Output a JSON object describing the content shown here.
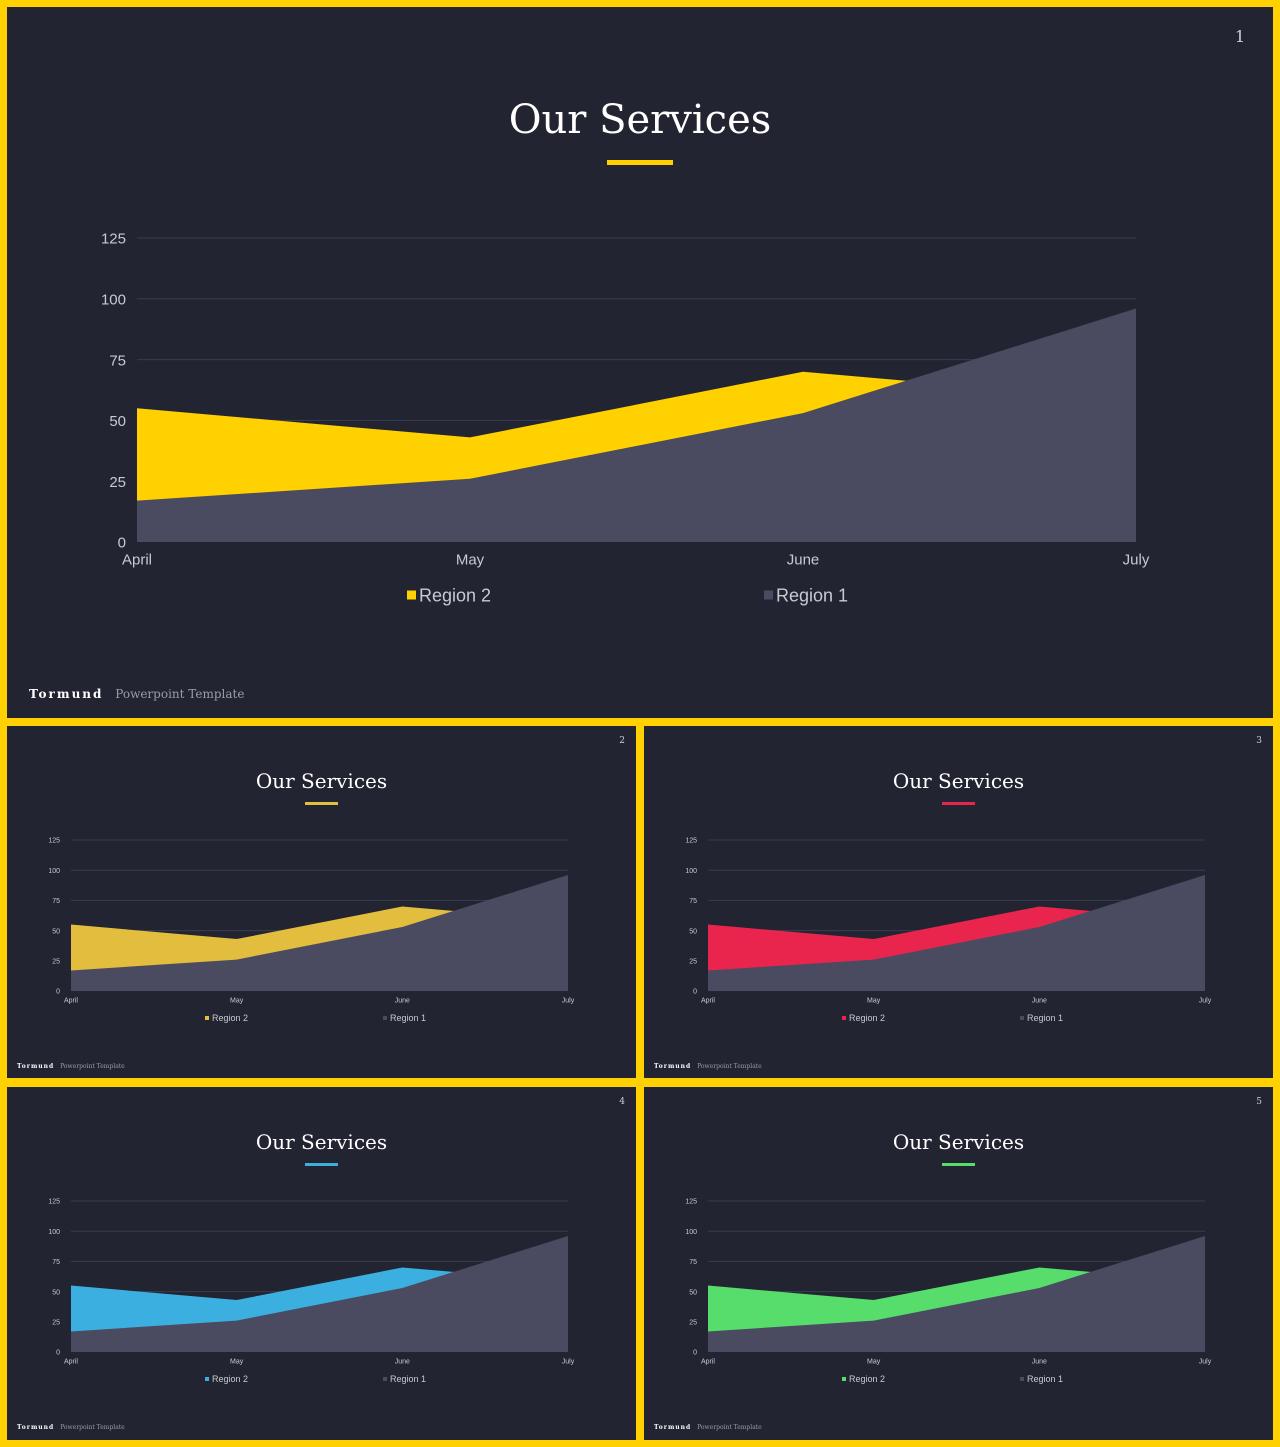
{
  "colors": {
    "frame": "#FFD100",
    "slide_bg": "#222431",
    "region1": "#4A4B61",
    "gridline": "#3A3C4D",
    "axis_text": "#C8C9D2"
  },
  "slides": [
    {
      "page": "1",
      "title": "Our Services",
      "accent": "#FFD100",
      "footer_brand": "Tormund",
      "footer_tagline": "Powerpoint  Template",
      "legend": [
        "Region 2",
        "Region 1"
      ]
    },
    {
      "page": "2",
      "title": "Our Services",
      "accent": "#E3BD3D",
      "footer_brand": "Tormund",
      "footer_tagline": "Powerpoint  Template",
      "legend": [
        "Region 2",
        "Region 1"
      ]
    },
    {
      "page": "3",
      "title": "Our Services",
      "accent": "#E9254E",
      "footer_brand": "Tormund",
      "footer_tagline": "Powerpoint  Template",
      "legend": [
        "Region 2",
        "Region 1"
      ]
    },
    {
      "page": "4",
      "title": "Our Services",
      "accent": "#3BB0E0",
      "footer_brand": "Tormund",
      "footer_tagline": "Powerpoint  Template",
      "legend": [
        "Region 2",
        "Region 1"
      ]
    },
    {
      "page": "5",
      "title": "Our Services",
      "accent": "#57DD6B",
      "footer_brand": "Tormund",
      "footer_tagline": "Powerpoint  Template",
      "legend": [
        "Region 2",
        "Region 1"
      ]
    }
  ],
  "chart_data": {
    "type": "area",
    "categories": [
      "April",
      "May",
      "June",
      "July"
    ],
    "series": [
      {
        "name": "Region 2",
        "values": [
          55,
          43,
          70,
          58
        ]
      },
      {
        "name": "Region 1",
        "values": [
          17,
          26,
          53,
          96
        ]
      }
    ],
    "ylim": [
      0,
      125
    ],
    "yticks": [
      0,
      25,
      50,
      75,
      100,
      125
    ],
    "grid": true,
    "legend": "bottom"
  }
}
